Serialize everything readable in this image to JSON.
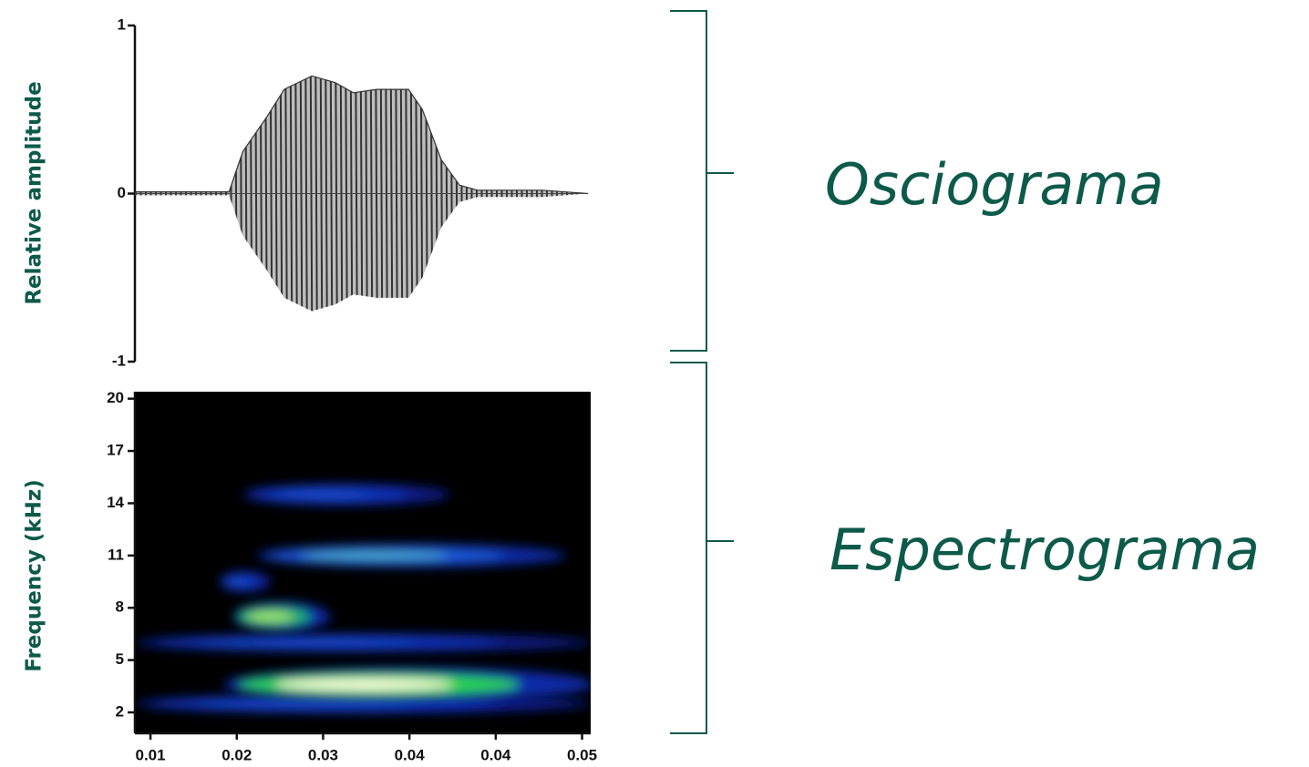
{
  "chart_data": [
    {
      "type": "oscillogram",
      "ylabel": "Relative amplitude",
      "annotation": "Osciograma",
      "ylim": [
        -1,
        1
      ],
      "yticks": [
        1,
        0,
        -1
      ],
      "xlim": [
        -0.18,
        5.1
      ],
      "x": [
        -0.18,
        0.91,
        1.07,
        1.34,
        1.55,
        1.87,
        2.14,
        2.35,
        2.62,
        2.99,
        3.15,
        3.37,
        3.58,
        3.79,
        4.54,
        5.07
      ],
      "values": [
        0.01,
        0.01,
        0.25,
        0.45,
        0.62,
        0.7,
        0.66,
        0.6,
        0.62,
        0.62,
        0.5,
        0.2,
        0.05,
        0.02,
        0.02,
        0
      ],
      "color": "#333333"
    },
    {
      "type": "spectrogram",
      "ylabel": "Frequency (kHz)",
      "annotation": "Espectrograma",
      "ylim": [
        0.8,
        20.4
      ],
      "yticks": [
        20,
        17,
        14,
        11,
        8,
        5,
        2
      ],
      "xlim": [
        -0.18,
        5.1
      ],
      "xtick_labels": [
        "0.01",
        "0.02",
        "0.03",
        "0.04",
        "0.04",
        "0.05"
      ],
      "background": "#000000",
      "bands": [
        {
          "x0": -0.18,
          "x1": 5.1,
          "freq": 2.5,
          "intensity": 0.4
        },
        {
          "x0": -0.18,
          "x1": 5.1,
          "freq": 6,
          "intensity": 0.35
        },
        {
          "x0": 0.8,
          "x1": 1.4,
          "freq": 9.5,
          "intensity": 0.45
        },
        {
          "x0": 1.07,
          "x1": 3.47,
          "freq": 14.5,
          "intensity": 0.5
        },
        {
          "x0": 1.23,
          "x1": 4.81,
          "freq": 11,
          "intensity": 0.55
        },
        {
          "x0": 0.96,
          "x1": 2.08,
          "freq": 7.5,
          "intensity": 0.8
        },
        {
          "x0": 0.85,
          "x1": 5.13,
          "freq": 3.6,
          "intensity": 1.0
        }
      ]
    }
  ]
}
